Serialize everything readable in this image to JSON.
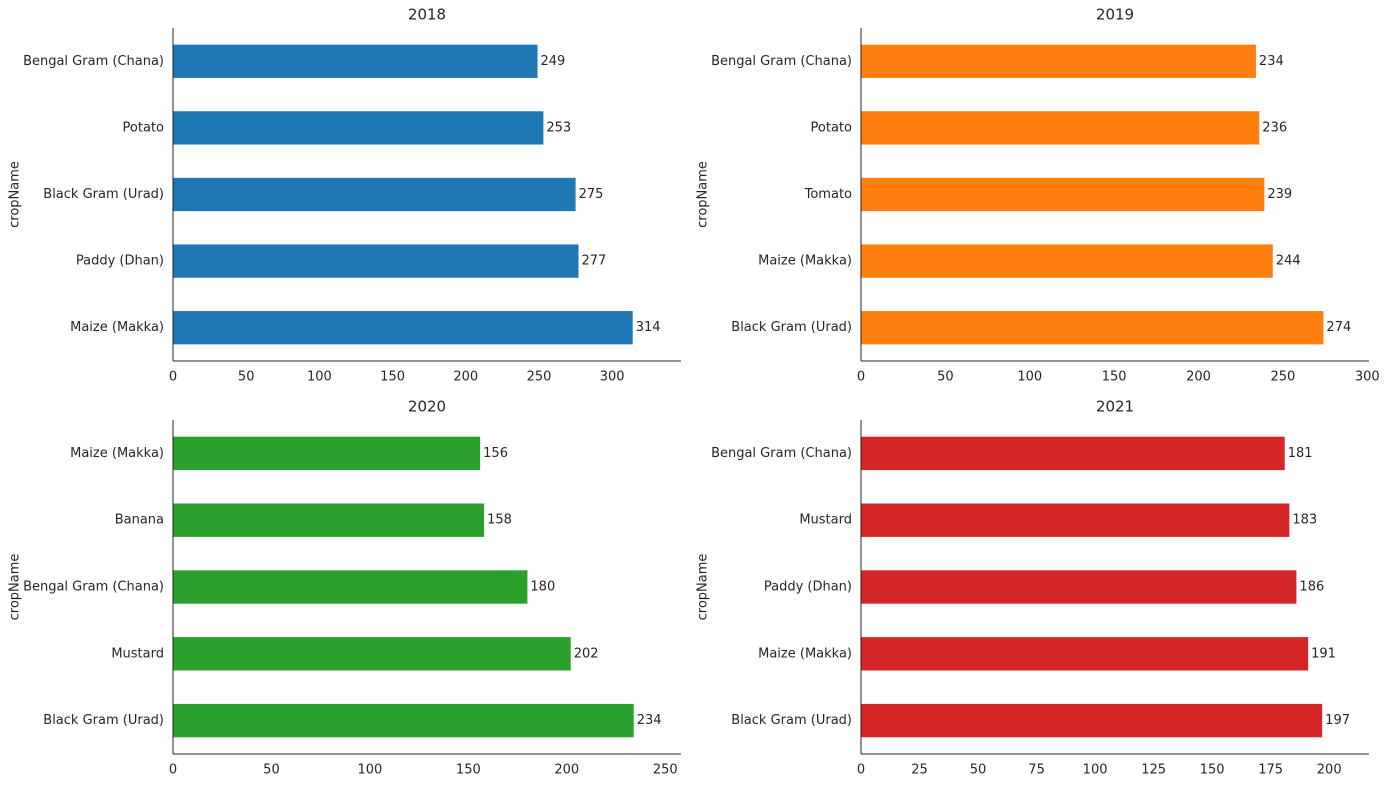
{
  "chart_data": [
    {
      "type": "barh",
      "title": "2018",
      "ylabel": "cropName",
      "color": "#1f77b4",
      "categories": [
        "Bengal Gram (Chana)",
        "Potato",
        "Black Gram (Urad)",
        "Paddy (Dhan)",
        "Maize (Makka)"
      ],
      "values": [
        249,
        253,
        275,
        277,
        314
      ],
      "xlim": [
        0,
        347
      ],
      "xticks": [
        0,
        50,
        100,
        150,
        200,
        250,
        300
      ]
    },
    {
      "type": "barh",
      "title": "2019",
      "ylabel": "cropName",
      "color": "#ff7f0e",
      "categories": [
        "Bengal Gram (Chana)",
        "Potato",
        "Tomato",
        "Maize (Makka)",
        "Black Gram (Urad)"
      ],
      "values": [
        234,
        236,
        239,
        244,
        274
      ],
      "xlim": [
        0,
        301
      ],
      "xticks": [
        0,
        50,
        100,
        150,
        200,
        250,
        300
      ]
    },
    {
      "type": "barh",
      "title": "2020",
      "ylabel": "cropName",
      "color": "#2ca02c",
      "categories": [
        "Maize (Makka)",
        "Banana",
        "Bengal Gram (Chana)",
        "Mustard",
        "Black Gram (Urad)"
      ],
      "values": [
        156,
        158,
        180,
        202,
        234
      ],
      "xlim": [
        0,
        258
      ],
      "xticks": [
        0,
        50,
        100,
        150,
        200,
        250
      ]
    },
    {
      "type": "barh",
      "title": "2021",
      "ylabel": "cropName",
      "color": "#d62728",
      "categories": [
        "Bengal Gram (Chana)",
        "Mustard",
        "Paddy (Dhan)",
        "Maize (Makka)",
        "Black Gram (Urad)"
      ],
      "values": [
        181,
        183,
        186,
        191,
        197
      ],
      "xlim": [
        0,
        217
      ],
      "xticks": [
        0,
        25,
        50,
        75,
        100,
        125,
        150,
        175,
        200
      ]
    }
  ]
}
